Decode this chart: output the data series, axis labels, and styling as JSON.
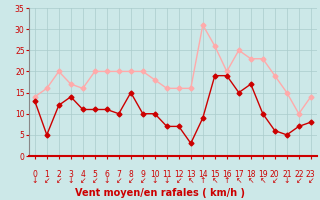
{
  "hours": [
    0,
    1,
    2,
    3,
    4,
    5,
    6,
    7,
    8,
    9,
    10,
    11,
    12,
    13,
    14,
    15,
    16,
    17,
    18,
    19,
    20,
    21,
    22,
    23
  ],
  "wind_avg": [
    13,
    5,
    12,
    14,
    11,
    11,
    11,
    10,
    15,
    10,
    10,
    7,
    7,
    3,
    9,
    19,
    19,
    15,
    17,
    10,
    6,
    5,
    7,
    8
  ],
  "wind_gust": [
    14,
    16,
    20,
    17,
    16,
    20,
    20,
    20,
    20,
    20,
    18,
    16,
    16,
    16,
    31,
    26,
    20,
    25,
    23,
    23,
    19,
    15,
    10,
    14
  ],
  "color_avg": "#cc0000",
  "color_gust": "#ffaaaa",
  "bg_color": "#cce8e8",
  "grid_color": "#aacccc",
  "ylim": [
    0,
    35
  ],
  "yticks": [
    0,
    5,
    10,
    15,
    20,
    25,
    30,
    35
  ],
  "marker": "D",
  "marker_size": 2.5,
  "line_width": 1.0,
  "xlabel": "Vent moyen/en rafales ( km/h )",
  "xlabel_color": "#cc0000",
  "tick_color": "#cc0000",
  "axis_fontsize": 7.0,
  "tick_fontsize": 5.5,
  "arrows": [
    "↓",
    "↙",
    "↙",
    "↓",
    "↙",
    "↙",
    "↓",
    "↙",
    "↙",
    "↙",
    "↓",
    "↓",
    "↙",
    "↖",
    "↑",
    "↖",
    "↑",
    "↖",
    "↖",
    "↖",
    "↙",
    "↓",
    "↙",
    "↙"
  ]
}
